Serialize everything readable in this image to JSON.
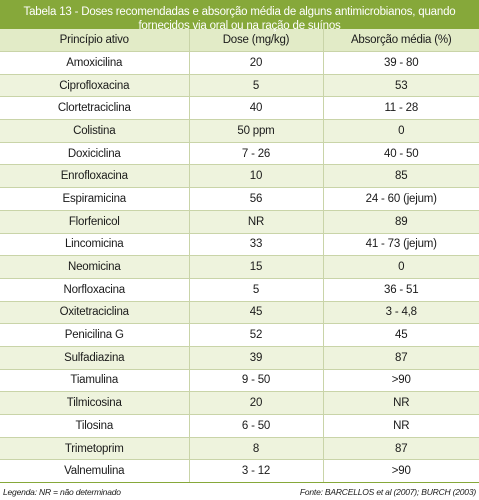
{
  "table": {
    "title_line1": "Tabela 13 - Doses recomendadas e absorção média de alguns antimicrobianos, quando",
    "title_line2": "fornecidos via oral ou na ração de suínos",
    "headers": [
      "Princípio ativo",
      "Dose (mg/kg)",
      "Absorção média (%)"
    ],
    "rows": [
      [
        "Amoxicilina",
        "20",
        "39 - 80"
      ],
      [
        "Ciprofloxacina",
        "5",
        "53"
      ],
      [
        "Clortetraciclina",
        "40",
        "11 - 28"
      ],
      [
        "Colistina",
        "50 ppm",
        "0"
      ],
      [
        "Doxiciclina",
        "7 - 26",
        "40 - 50"
      ],
      [
        "Enrofloxacina",
        "10",
        "85"
      ],
      [
        "Espiramicina",
        "56",
        "24 - 60 (jejum)"
      ],
      [
        "Florfenicol",
        "NR",
        "89"
      ],
      [
        "Lincomicina",
        "33",
        "41 - 73 (jejum)"
      ],
      [
        "Neomicina",
        "15",
        "0"
      ],
      [
        "Norfloxacina",
        "5",
        "36 - 51"
      ],
      [
        "Oxitetraciclina",
        "45",
        "3 - 4,8"
      ],
      [
        "Penicilina G",
        "52",
        "45"
      ],
      [
        "Sulfadiazina",
        "39",
        "87"
      ],
      [
        "Tiamulina",
        "9 - 50",
        ">90"
      ],
      [
        "Tilmicosina",
        "20",
        "NR"
      ],
      [
        "Tilosina",
        "6 - 50",
        "NR"
      ],
      [
        "Trimetoprim",
        "8",
        "87"
      ],
      [
        "Valnemulina",
        "3 - 12",
        ">90"
      ]
    ],
    "legend": "Legenda: NR = não determinado",
    "source": "Fonte: BARCELLOS et al (2007); BURCH (2003)"
  },
  "colors": {
    "header_band": "#86a83a",
    "column_header_bg": "#e2ebc7",
    "alt_row_bg": "#eef3dd",
    "grid": "#c9d4a8"
  }
}
